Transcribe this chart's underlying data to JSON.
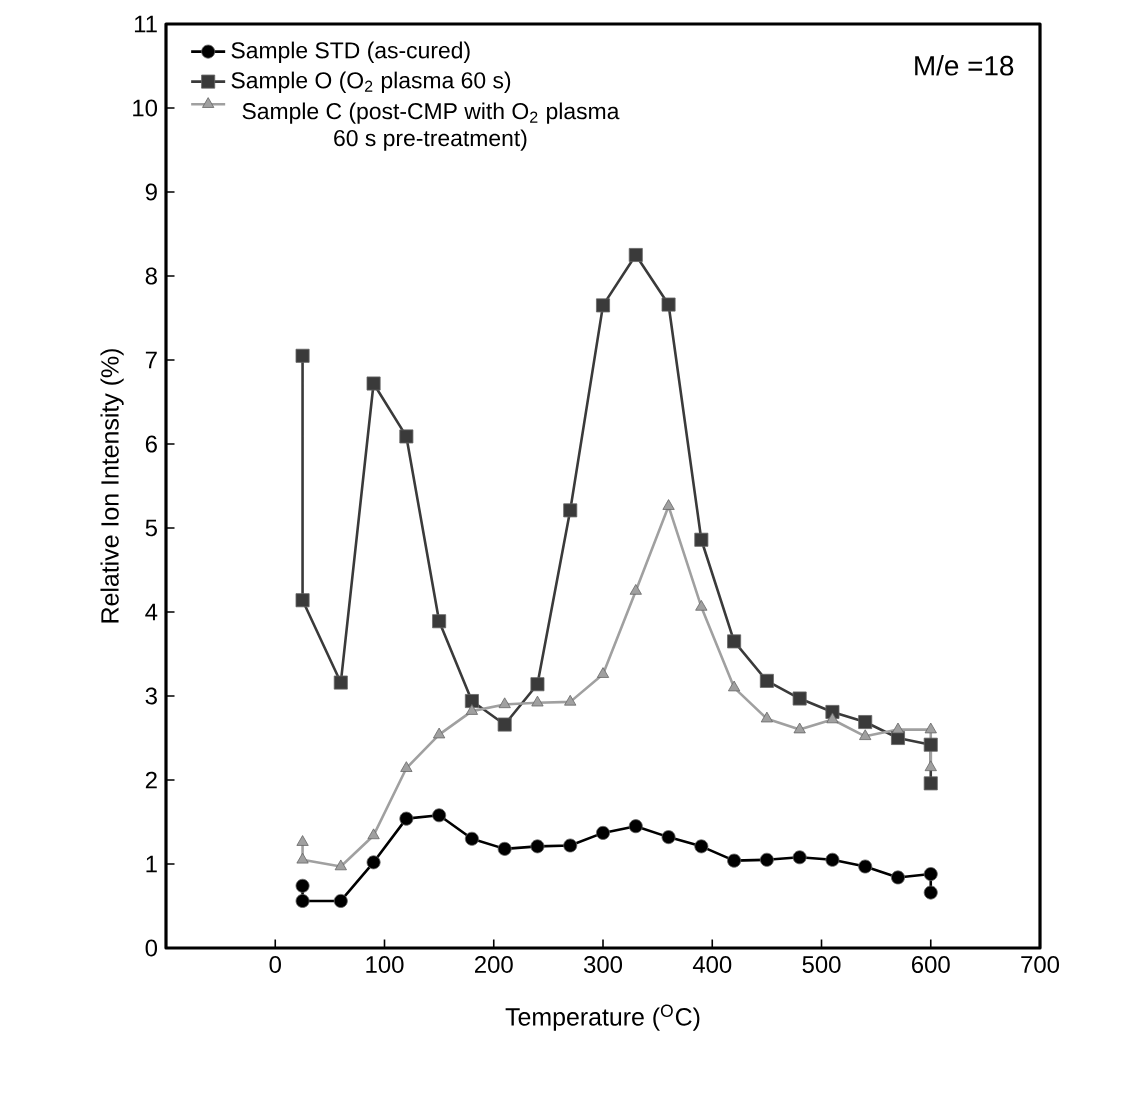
{
  "chart_data": {
    "type": "line",
    "xlabel": "Temperature ($^{O}$C)",
    "ylabel": "Relative Ion Intensity (%)",
    "xlim": [
      -100,
      700
    ],
    "xticks": [
      0,
      100,
      200,
      300,
      400,
      500,
      600,
      700
    ],
    "ylim": [
      0,
      11
    ],
    "yticks": [
      0,
      1,
      2,
      3,
      4,
      5,
      6,
      7,
      8,
      9,
      10,
      11
    ],
    "legend": "top left",
    "grid": false,
    "line_style": "solid",
    "annotations": [
      "M/e =18"
    ],
    "series": [
      {
        "name": "Sample STD (as-cured)",
        "color": "#000000",
        "marker": "circle",
        "x": [
          25,
          25,
          60,
          90,
          120,
          150,
          180,
          210,
          240,
          270,
          300,
          330,
          360,
          390,
          420,
          450,
          480,
          510,
          540,
          570,
          600,
          600
        ],
        "values": [
          0.74,
          0.56,
          0.56,
          1.02,
          1.54,
          1.58,
          1.3,
          1.18,
          1.21,
          1.22,
          1.37,
          1.45,
          1.32,
          1.21,
          1.04,
          1.05,
          1.08,
          1.05,
          0.97,
          0.84,
          0.88,
          0.66
        ]
      },
      {
        "name": "Sample O (O$_{2}$ plasma 60 s)",
        "color": "#3a3a3a",
        "marker": "square",
        "x": [
          25,
          25,
          60,
          90,
          120,
          150,
          180,
          210,
          240,
          270,
          300,
          330,
          360,
          390,
          420,
          450,
          480,
          510,
          540,
          570,
          600,
          600
        ],
        "values": [
          7.05,
          4.14,
          3.16,
          6.72,
          6.09,
          3.89,
          2.94,
          2.66,
          3.14,
          5.21,
          7.65,
          8.25,
          7.66,
          4.86,
          3.65,
          3.18,
          2.97,
          2.81,
          2.69,
          2.5,
          2.42,
          1.96
        ]
      },
      {
        "name": "Sample C (post-CMP with O$_{2}$ plasma 60 s pre-treatment)",
        "color": "#a0a0a0",
        "marker": "triangle",
        "x": [
          25,
          25,
          60,
          90,
          120,
          150,
          180,
          210,
          240,
          270,
          300,
          330,
          360,
          390,
          420,
          450,
          480,
          510,
          540,
          570,
          600,
          600
        ],
        "values": [
          1.26,
          1.05,
          0.97,
          1.34,
          2.14,
          2.54,
          2.82,
          2.9,
          2.92,
          2.93,
          3.26,
          4.25,
          5.26,
          4.06,
          3.1,
          2.73,
          2.6,
          2.72,
          2.52,
          2.6,
          2.6,
          2.15
        ]
      }
    ]
  }
}
